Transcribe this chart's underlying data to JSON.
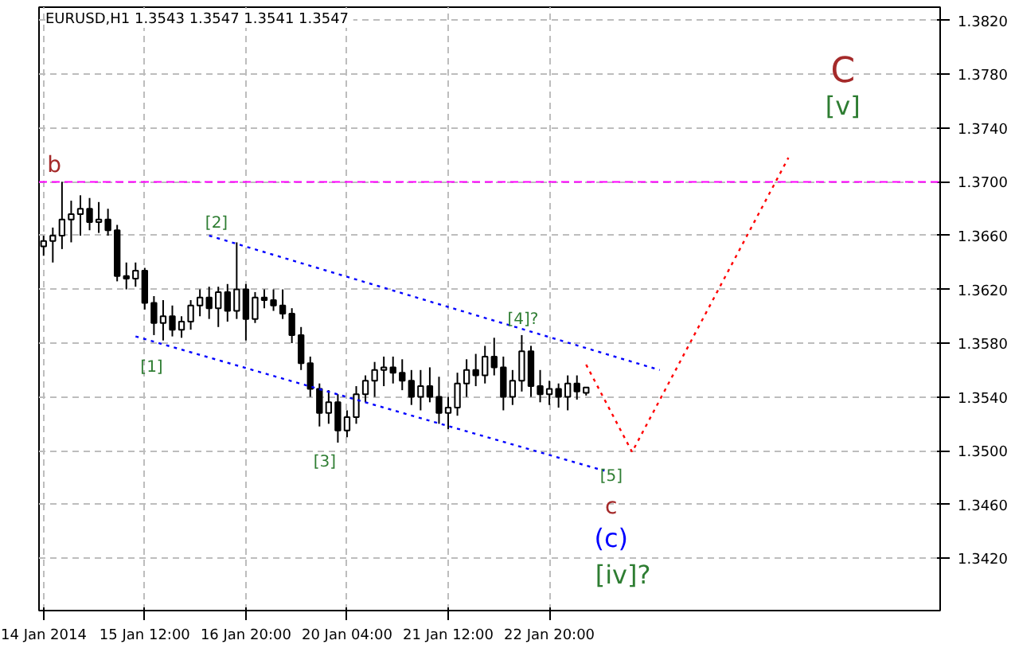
{
  "chart_data": {
    "type": "candlestick",
    "title": "EURUSD,H1  1.3543 1.3547 1.3541 1.3547",
    "color": "#000000",
    "categories": [
      "14 Jan 2014",
      null,
      null,
      null,
      null,
      null,
      null,
      null,
      null,
      null,
      null,
      "15 Jan 12:00",
      null,
      null,
      null,
      null,
      null,
      null,
      null,
      null,
      null,
      null,
      "16 Jan 20:00",
      null,
      null,
      null,
      null,
      null,
      null,
      null,
      null,
      null,
      null,
      "20 Jan 04:00",
      null,
      null,
      null,
      null,
      null,
      null,
      null,
      null,
      null,
      null,
      "21 Jan 12:00",
      null,
      null,
      null,
      null,
      null,
      null,
      null,
      null,
      null,
      null,
      "22 Jan 20:00",
      null,
      null,
      null,
      null,
      null,
      null,
      null,
      null,
      null,
      null,
      null,
      null,
      null,
      null,
      null,
      null,
      null,
      null,
      null,
      null,
      null,
      null,
      null,
      null,
      null,
      null,
      null,
      null,
      null,
      null,
      null,
      null,
      null,
      null,
      null,
      null,
      null,
      null,
      null,
      null,
      null,
      null
    ],
    "ohlc": [
      [
        1.3652,
        1.366,
        1.3645,
        1.3656
      ],
      [
        1.3656,
        1.3666,
        1.364,
        1.366
      ],
      [
        1.366,
        1.37,
        1.365,
        1.3672
      ],
      [
        1.3672,
        1.3686,
        1.3655,
        1.3676
      ],
      [
        1.3676,
        1.369,
        1.366,
        1.368
      ],
      [
        1.368,
        1.3688,
        1.3664,
        1.367
      ],
      [
        1.367,
        1.3685,
        1.3662,
        1.3672
      ],
      [
        1.3672,
        1.368,
        1.366,
        1.3664
      ],
      [
        1.3664,
        1.3668,
        1.3626,
        1.363
      ],
      [
        1.363,
        1.364,
        1.362,
        1.3628
      ],
      [
        1.3628,
        1.364,
        1.3622,
        1.3634
      ],
      [
        1.3634,
        1.3636,
        1.3605,
        1.361
      ],
      [
        1.361,
        1.3615,
        1.3586,
        1.3595
      ],
      [
        1.3595,
        1.3612,
        1.3582,
        1.36
      ],
      [
        1.36,
        1.3608,
        1.3585,
        1.359
      ],
      [
        1.359,
        1.36,
        1.3584,
        1.3596
      ],
      [
        1.3596,
        1.3612,
        1.359,
        1.3608
      ],
      [
        1.3608,
        1.362,
        1.36,
        1.3614
      ],
      [
        1.3614,
        1.3622,
        1.3598,
        1.3606
      ],
      [
        1.3606,
        1.3622,
        1.3592,
        1.3618
      ],
      [
        1.3618,
        1.3624,
        1.3596,
        1.3604
      ],
      [
        1.3604,
        1.3655,
        1.3598,
        1.362
      ],
      [
        1.362,
        1.3624,
        1.3582,
        1.3598
      ],
      [
        1.3598,
        1.3618,
        1.3595,
        1.3614
      ],
      [
        1.3614,
        1.362,
        1.3606,
        1.3612
      ],
      [
        1.3612,
        1.362,
        1.3604,
        1.3608
      ],
      [
        1.3608,
        1.362,
        1.3598,
        1.3602
      ],
      [
        1.3602,
        1.3606,
        1.358,
        1.3586
      ],
      [
        1.3586,
        1.3592,
        1.356,
        1.3565
      ],
      [
        1.3565,
        1.357,
        1.354,
        1.3546
      ],
      [
        1.3546,
        1.355,
        1.3518,
        1.3528
      ],
      [
        1.3528,
        1.3545,
        1.352,
        1.3536
      ],
      [
        1.3536,
        1.3542,
        1.3506,
        1.3515
      ],
      [
        1.3515,
        1.353,
        1.351,
        1.3525
      ],
      [
        1.3525,
        1.3548,
        1.352,
        1.3542
      ],
      [
        1.3542,
        1.3556,
        1.3536,
        1.3552
      ],
      [
        1.3552,
        1.3566,
        1.354,
        1.356
      ],
      [
        1.356,
        1.357,
        1.3548,
        1.3562
      ],
      [
        1.3562,
        1.357,
        1.355,
        1.3558
      ],
      [
        1.3558,
        1.3568,
        1.3545,
        1.3552
      ],
      [
        1.3552,
        1.356,
        1.3534,
        1.354
      ],
      [
        1.354,
        1.356,
        1.353,
        1.3548
      ],
      [
        1.3548,
        1.3562,
        1.3536,
        1.354
      ],
      [
        1.354,
        1.3555,
        1.352,
        1.3528
      ],
      [
        1.3528,
        1.354,
        1.3516,
        1.3532
      ],
      [
        1.3532,
        1.3558,
        1.3526,
        1.355
      ],
      [
        1.355,
        1.3568,
        1.354,
        1.356
      ],
      [
        1.356,
        1.3572,
        1.3548,
        1.3556
      ],
      [
        1.3556,
        1.3578,
        1.355,
        1.357
      ],
      [
        1.357,
        1.3584,
        1.3556,
        1.3562
      ],
      [
        1.3562,
        1.357,
        1.353,
        1.354
      ],
      [
        1.354,
        1.356,
        1.3534,
        1.3552
      ],
      [
        1.3552,
        1.3586,
        1.3544,
        1.3574
      ],
      [
        1.3574,
        1.3578,
        1.354,
        1.3548
      ],
      [
        1.3548,
        1.356,
        1.3536,
        1.3542
      ],
      [
        1.3542,
        1.3552,
        1.3534,
        1.3546
      ],
      [
        1.3546,
        1.355,
        1.3532,
        1.354
      ],
      [
        1.354,
        1.3556,
        1.353,
        1.355
      ],
      [
        1.355,
        1.3556,
        1.3538,
        1.3544
      ],
      [
        1.3543,
        1.3547,
        1.3541,
        1.3547
      ],
      null,
      null,
      null,
      null,
      null,
      null,
      null,
      null,
      null,
      null,
      null,
      null,
      null,
      null,
      null,
      null,
      null,
      null,
      null,
      null,
      null,
      null,
      null,
      null,
      null,
      null,
      null,
      null,
      null,
      null,
      null,
      null,
      null,
      null,
      null,
      null,
      null,
      null
    ],
    "series": [
      {
        "type": "line",
        "color": "#0000ff",
        "line_style": "dotted",
        "values": [
          null,
          null,
          null,
          null,
          null,
          null,
          null,
          null,
          null,
          null,
          null,
          null,
          null,
          null,
          null,
          null,
          null,
          null,
          1.366,
          null,
          null,
          null,
          null,
          null,
          null,
          null,
          null,
          null,
          null,
          null,
          null,
          null,
          null,
          null,
          null,
          null,
          null,
          null,
          null,
          null,
          null,
          null,
          null,
          null,
          null,
          null,
          null,
          null,
          null,
          null,
          null,
          null,
          null,
          null,
          null,
          null,
          null,
          null,
          null,
          null,
          null,
          null,
          null,
          null,
          null,
          null,
          null,
          1.356,
          null,
          null,
          null,
          null,
          null,
          null,
          null,
          null,
          null,
          null,
          null,
          null,
          null,
          null,
          null,
          null,
          null,
          null,
          null,
          null,
          null,
          null,
          null,
          null,
          null,
          null,
          null,
          null,
          null,
          null
        ]
      },
      {
        "type": "line",
        "color": "#0000ff",
        "line_style": "dotted",
        "values": [
          null,
          null,
          null,
          null,
          null,
          null,
          null,
          null,
          null,
          null,
          1.3585,
          null,
          null,
          null,
          null,
          null,
          null,
          null,
          null,
          null,
          null,
          null,
          null,
          null,
          null,
          null,
          null,
          null,
          null,
          null,
          null,
          null,
          null,
          null,
          null,
          null,
          null,
          null,
          null,
          null,
          null,
          null,
          null,
          null,
          null,
          null,
          null,
          null,
          null,
          null,
          null,
          null,
          null,
          null,
          null,
          null,
          null,
          null,
          null,
          null,
          null,
          1.3485,
          null,
          null,
          null,
          null,
          null,
          null,
          null,
          null,
          null,
          null,
          null,
          null,
          null,
          null,
          null,
          null,
          null,
          null,
          null,
          null,
          null,
          null,
          null,
          null,
          null,
          null,
          null,
          null,
          null,
          null,
          null,
          null,
          null,
          null,
          null,
          null
        ]
      },
      {
        "type": "line",
        "color": "#ff0000",
        "line_style": "dotted",
        "values": [
          null,
          null,
          null,
          null,
          null,
          null,
          null,
          null,
          null,
          null,
          null,
          null,
          null,
          null,
          null,
          null,
          null,
          null,
          null,
          null,
          null,
          null,
          null,
          null,
          null,
          null,
          null,
          null,
          null,
          null,
          null,
          null,
          null,
          null,
          null,
          null,
          null,
          null,
          null,
          null,
          null,
          null,
          null,
          null,
          null,
          null,
          null,
          null,
          null,
          null,
          null,
          null,
          null,
          null,
          null,
          null,
          null,
          null,
          null,
          1.3564,
          null,
          null,
          null,
          null,
          1.3499,
          null,
          null,
          null,
          null,
          null,
          null,
          null,
          null,
          null,
          null,
          null,
          null,
          null,
          null,
          null,
          null,
          1.3718,
          null,
          null,
          null,
          null,
          null,
          null,
          null,
          null,
          null,
          null,
          null,
          null,
          null,
          null,
          null,
          null
        ]
      }
    ],
    "ref_lines": [
      {
        "axis": "y",
        "value": 1.37,
        "color": "#ff00ff",
        "line_style": "dashed"
      }
    ],
    "annotations": [
      "b",
      "[2]",
      "[1]",
      "[3]",
      "[4]?",
      "[5]",
      "c",
      "(c)",
      "[iv]?",
      "C",
      "[v]"
    ],
    "ylim": [
      1.3381,
      1.383
    ],
    "yticks": [
      {
        "value": 1.342,
        "label": "1.3420"
      },
      {
        "value": 1.346,
        "label": "1.3460"
      },
      {
        "value": 1.35,
        "label": "1.3500"
      },
      {
        "value": 1.354,
        "label": "1.3540"
      },
      {
        "value": 1.358,
        "label": "1.3580"
      },
      {
        "value": 1.362,
        "label": "1.3620"
      },
      {
        "value": 1.366,
        "label": "1.3660"
      },
      {
        "value": 1.37,
        "label": "1.3700"
      },
      {
        "value": 1.374,
        "label": "1.3740"
      },
      {
        "value": 1.378,
        "label": "1.3780"
      },
      {
        "value": 1.382,
        "label": "1.3820"
      }
    ],
    "grid": true
  }
}
